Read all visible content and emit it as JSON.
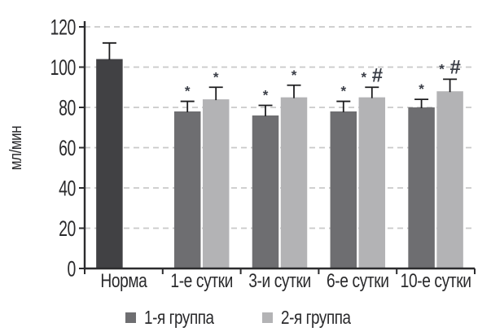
{
  "chart_data": {
    "type": "bar",
    "title": "",
    "ylabel": "мл/мин",
    "xlabel": "",
    "ylim": [
      0,
      120
    ],
    "yticks": [
      0,
      20,
      40,
      60,
      80,
      100,
      120
    ],
    "grid": "horizontal-dashed",
    "legend_position": "bottom",
    "categories": [
      "Норма",
      "1-е сутки",
      "3-и сутки",
      "6-е сутки",
      "10-е сутки"
    ],
    "norm_color": "#414144",
    "series": [
      {
        "name": "1-я группа",
        "color": "#6e6e71",
        "values": [
          104,
          78,
          76,
          78,
          80
        ],
        "errors": [
          8,
          5,
          5,
          5,
          4
        ],
        "annotations": [
          "",
          "*",
          "*",
          "*",
          "*"
        ]
      },
      {
        "name": "2-я группа",
        "color": "#b3b3b5",
        "values": [
          null,
          84,
          85,
          85,
          88
        ],
        "errors": [
          null,
          6,
          6,
          5,
          6
        ],
        "annotations": [
          "",
          "*",
          "*",
          "* #",
          "* #"
        ]
      }
    ],
    "colors": {
      "axis": "#2c2c2e",
      "grid": "#c9c9c9",
      "text": "#2a2a2c",
      "error_bar": "#1d1d1f",
      "annotation": "#3a3e47"
    }
  }
}
